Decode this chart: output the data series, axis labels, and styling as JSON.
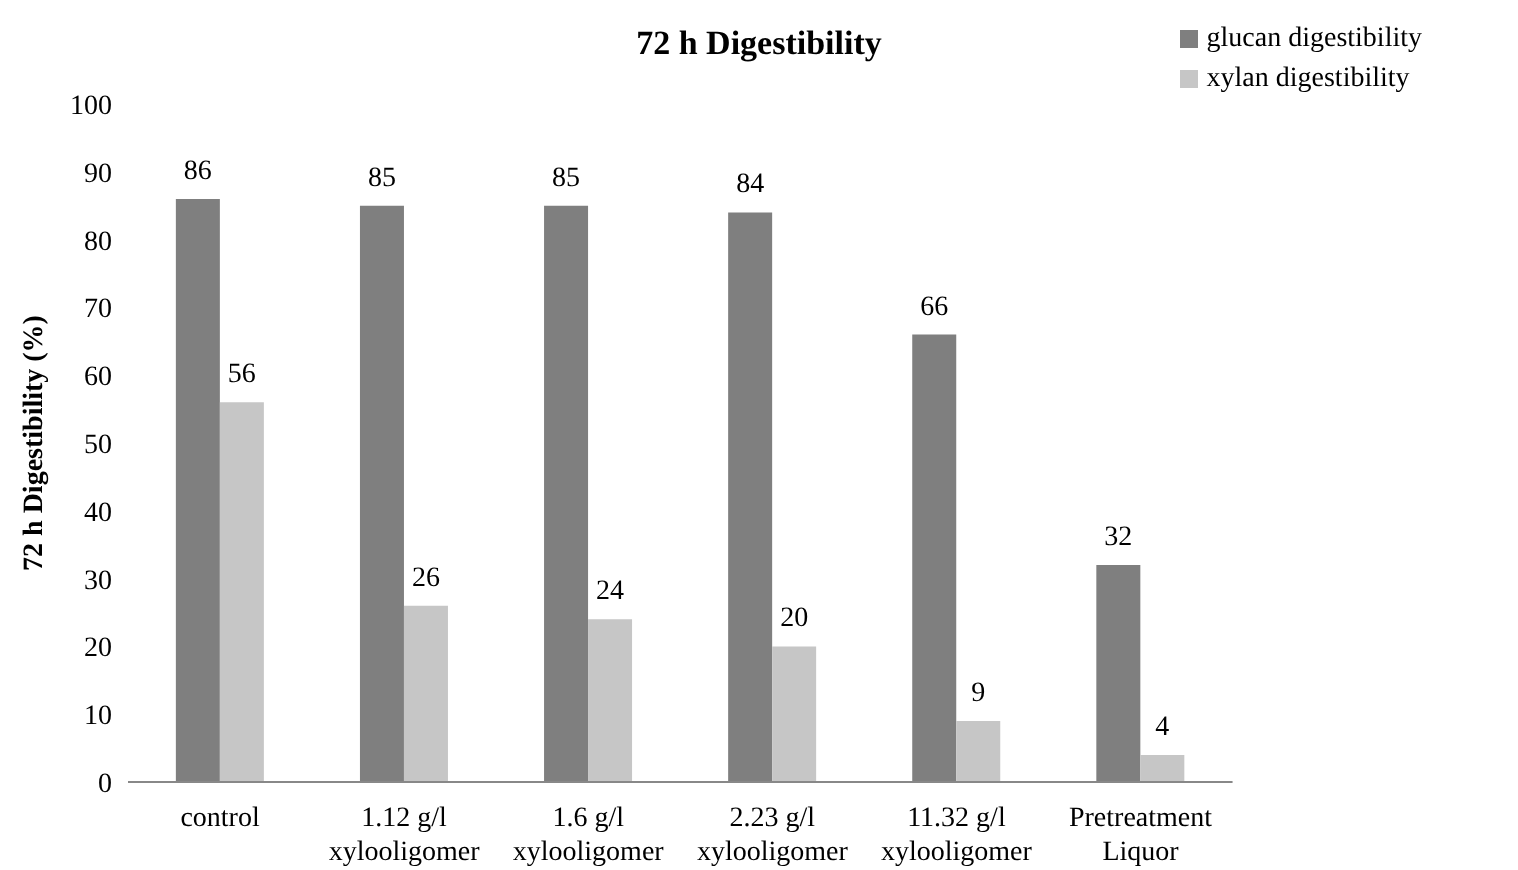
{
  "chart_data": {
    "type": "bar",
    "title": "72 h Digestibility",
    "ylabel": "72 h Digestibility (%)",
    "categories": [
      "control",
      "1.12 g/l\nxylooligomer",
      "1.6 g/l\nxylooligomer",
      "2.23 g/l\nxylooligomer",
      "11.32 g/l\nxylooligomer",
      "Pretreatment\nLiquor"
    ],
    "series": [
      {
        "name": "glucan digestibility",
        "color": "#7f7f7f",
        "values": [
          86,
          85,
          85,
          84,
          66,
          32
        ]
      },
      {
        "name": "xylan digestibility",
        "color": "#c6c6c6",
        "values": [
          56,
          26,
          24,
          20,
          9,
          4
        ]
      }
    ],
    "ylim": [
      0,
      100
    ],
    "yticks": [
      0,
      10,
      20,
      30,
      40,
      50,
      60,
      70,
      80,
      90,
      100
    ],
    "grid": false,
    "legend": "top right",
    "data_labels": true
  }
}
